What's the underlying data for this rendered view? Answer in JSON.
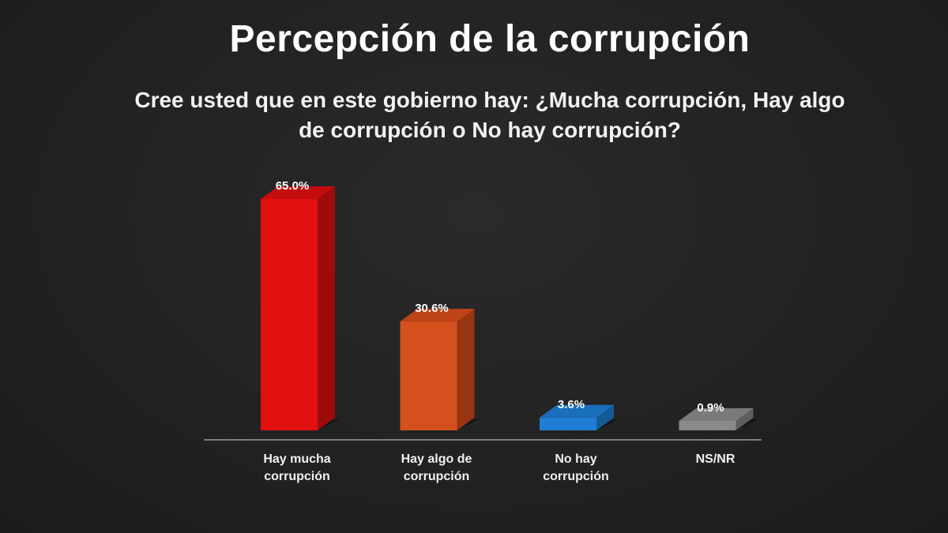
{
  "slide": {
    "title": "Percepción de la corrupción",
    "subtitle_line1": "Cree usted que en este gobierno hay: ¿Mucha corrupción, Hay algo",
    "subtitle_line2": "de corrupción o No hay corrupción?"
  },
  "colors": {
    "background": "#222222",
    "axis": "#9a9a9a"
  },
  "chart_data": {
    "type": "bar",
    "categories": [
      [
        "Hay mucha",
        "corrupción"
      ],
      [
        "Hay algo de",
        "corrupción"
      ],
      [
        "No hay",
        "corrupción"
      ],
      [
        "NS/NR"
      ]
    ],
    "values": [
      65.0,
      30.6,
      3.6,
      0.9
    ],
    "value_labels": [
      "65.0%",
      "30.6%",
      "3.6%",
      "0.9%"
    ],
    "unit": "%",
    "ylim": [
      0,
      65
    ],
    "grid": false,
    "legend": "none",
    "style": "3d",
    "bar_colors": [
      {
        "front": "#e0100f",
        "side": "#9e0b0b",
        "top": "#c40d0d"
      },
      {
        "front": "#d4501c",
        "side": "#973512",
        "top": "#bd4416"
      },
      {
        "front": "#1f7fd6",
        "side": "#155a98",
        "top": "#1a6fbc"
      },
      {
        "front": "#8a8a8a",
        "side": "#5e5e5e",
        "top": "#7a7a7a"
      }
    ]
  }
}
